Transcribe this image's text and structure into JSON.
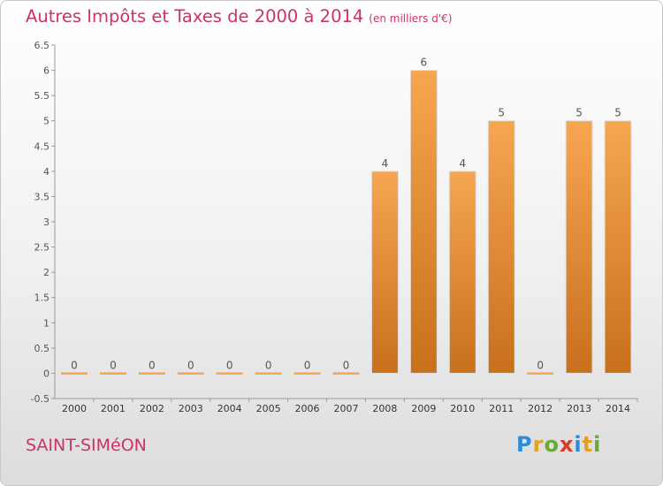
{
  "header": {
    "title": "Autres Impôts et Taxes de 2000 à 2014",
    "subtitle": "(en milliers d'€)"
  },
  "footer": {
    "place": "SAINT-SIMéON",
    "brand": "Proxiti"
  },
  "colors": {
    "title": "#cc3366",
    "bar_light": "#f7a650",
    "bar_dark": "#c8701c",
    "brand_p": "#2e8bd6",
    "brand_r": "#e2a020",
    "brand_o": "#6aa83a",
    "brand_x": "#d93a2b",
    "brand_i": "#2e8bd6",
    "brand_t": "#e2a020",
    "brand_i2": "#6aa83a"
  },
  "chart_data": {
    "type": "bar",
    "categories": [
      "2000",
      "2001",
      "2002",
      "2003",
      "2004",
      "2005",
      "2006",
      "2007",
      "2008",
      "2009",
      "2010",
      "2011",
      "2012",
      "2013",
      "2014"
    ],
    "values": [
      0,
      0,
      0,
      0,
      0,
      0,
      0,
      0,
      4,
      6,
      4,
      5,
      0,
      5,
      5
    ],
    "data_labels": [
      "0",
      "0",
      "0",
      "0",
      "0",
      "0",
      "0",
      "0",
      "4",
      "6",
      "4",
      "5",
      "0",
      "5",
      "5"
    ],
    "title": "Autres Impôts et Taxes de 2000 à 2014",
    "subtitle": "(en milliers d'€)",
    "ylim": [
      -0.5,
      6.5
    ],
    "yticks": [
      -0.5,
      0,
      0.5,
      1,
      1.5,
      2,
      2.5,
      3,
      3.5,
      4,
      4.5,
      5,
      5.5,
      6,
      6.5
    ],
    "ytick_labels": [
      "-0.5",
      "0",
      "0.5",
      "1",
      "1.5",
      "2",
      "2.5",
      "3",
      "3.5",
      "4",
      "4.5",
      "5",
      "5.5",
      "6",
      "6.5"
    ],
    "grid": false
  }
}
